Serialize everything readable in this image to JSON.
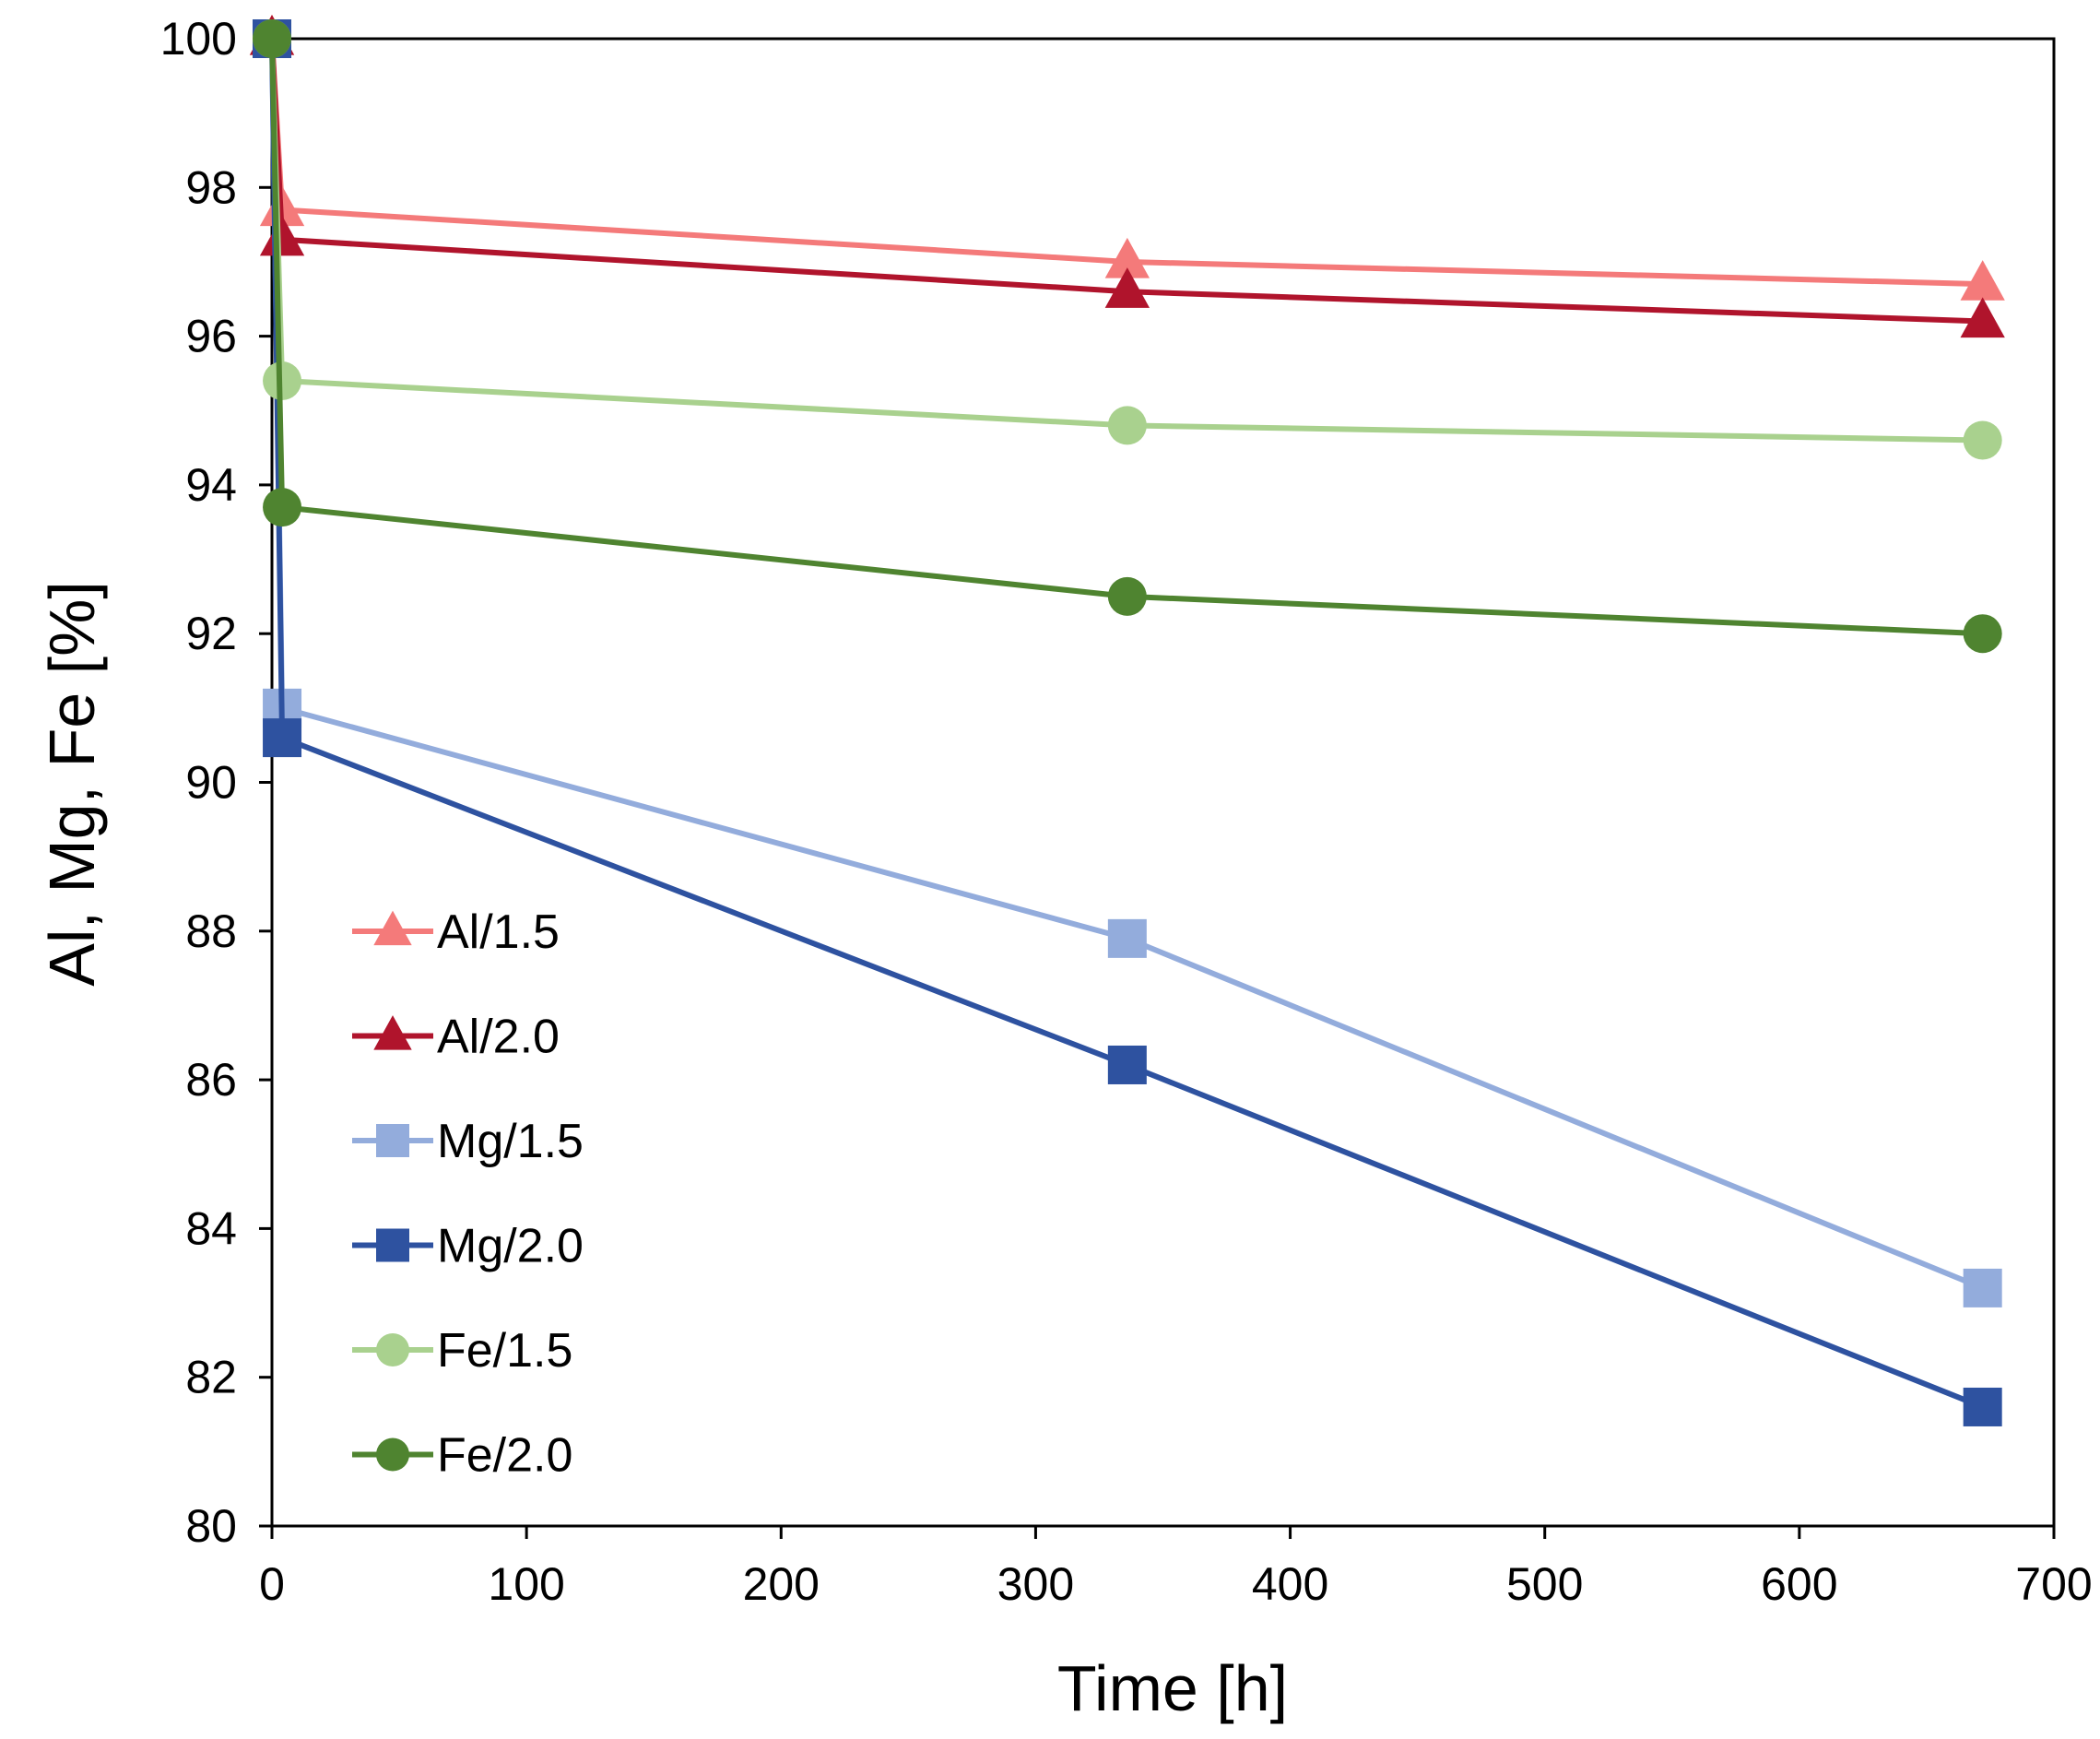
{
  "chart_data": {
    "type": "line",
    "title": "",
    "xlabel": "Time [h]",
    "ylabel": "Al, Mg, Fe [%]",
    "xlim": [
      0,
      700
    ],
    "ylim": [
      80,
      100
    ],
    "xticks": [
      0,
      100,
      200,
      300,
      400,
      500,
      600,
      700
    ],
    "yticks": [
      80,
      82,
      84,
      86,
      88,
      90,
      92,
      94,
      96,
      98,
      100
    ],
    "grid": false,
    "legend_position": "left-bottom",
    "series": [
      {
        "name": "Al/1.5",
        "color": "#f47a7a",
        "marker": "triangle",
        "x": [
          0,
          4,
          336,
          672
        ],
        "y": [
          100,
          97.7,
          97.0,
          96.7
        ]
      },
      {
        "name": "Al/2.0",
        "color": "#b0142c",
        "marker": "triangle",
        "x": [
          0,
          4,
          336,
          672
        ],
        "y": [
          100,
          97.3,
          96.6,
          96.2
        ]
      },
      {
        "name": "Mg/1.5",
        "color": "#93acdc",
        "marker": "square",
        "x": [
          0,
          4,
          336,
          672
        ],
        "y": [
          100,
          91.0,
          87.9,
          83.2
        ]
      },
      {
        "name": "Mg/2.0",
        "color": "#2e52a0",
        "marker": "square",
        "x": [
          0,
          4,
          336,
          672
        ],
        "y": [
          100,
          90.6,
          86.2,
          81.6
        ]
      },
      {
        "name": "Fe/1.5",
        "color": "#a9d18e",
        "marker": "circle",
        "x": [
          0,
          4,
          336,
          672
        ],
        "y": [
          100,
          95.4,
          94.8,
          94.6
        ]
      },
      {
        "name": "Fe/2.0",
        "color": "#4f8430",
        "marker": "circle",
        "x": [
          0,
          4,
          336,
          672
        ],
        "y": [
          100,
          93.7,
          92.5,
          92.0
        ]
      }
    ]
  }
}
